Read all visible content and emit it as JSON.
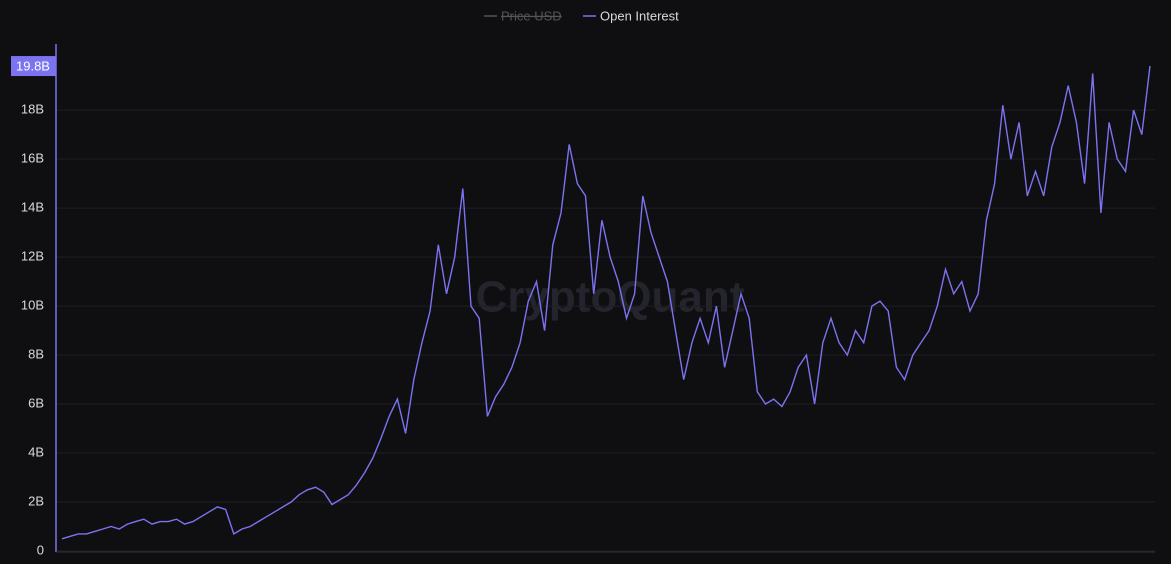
{
  "chart_data": {
    "type": "line",
    "watermark": "CryptoQuant",
    "hidden_series": [
      {
        "name": "Price USD",
        "color": "#555555"
      }
    ],
    "series": [
      {
        "name": "Open Interest",
        "color": "#7b73f0",
        "values": [
          0.5,
          0.6,
          0.7,
          0.7,
          0.8,
          0.9,
          1.0,
          0.9,
          1.1,
          1.2,
          1.3,
          1.1,
          1.2,
          1.2,
          1.3,
          1.1,
          1.2,
          1.4,
          1.6,
          1.8,
          1.7,
          0.7,
          0.9,
          1.0,
          1.2,
          1.4,
          1.6,
          1.8,
          2.0,
          2.3,
          2.5,
          2.6,
          2.4,
          1.9,
          2.1,
          2.3,
          2.7,
          3.2,
          3.8,
          4.6,
          5.5,
          6.2,
          4.8,
          7.0,
          8.5,
          9.8,
          12.5,
          10.5,
          12.0,
          14.8,
          10.0,
          9.5,
          5.5,
          6.3,
          6.8,
          7.5,
          8.5,
          10.2,
          11.0,
          9.0,
          12.5,
          13.8,
          16.6,
          15.0,
          14.5,
          10.5,
          13.5,
          12.0,
          11.0,
          9.5,
          10.5,
          14.5,
          13.0,
          12.0,
          11.0,
          9.0,
          7.0,
          8.5,
          9.5,
          8.5,
          10.0,
          7.5,
          9.0,
          10.5,
          9.5,
          6.5,
          6.0,
          6.2,
          5.9,
          6.5,
          7.5,
          8.0,
          6.0,
          8.5,
          9.5,
          8.5,
          8.0,
          9.0,
          8.5,
          10.0,
          10.2,
          9.8,
          7.5,
          7.0,
          8.0,
          8.5,
          9.0,
          10.0,
          11.5,
          10.5,
          11.0,
          9.8,
          10.5,
          13.5,
          15.0,
          18.2,
          16.0,
          17.5,
          14.5,
          15.5,
          14.5,
          16.5,
          17.5,
          19.0,
          17.5,
          15.0,
          19.5,
          13.8,
          17.5,
          16.0,
          15.5,
          18.0,
          17.0,
          19.8
        ]
      }
    ],
    "ylim": [
      0,
      20.7
    ],
    "yticks": [
      0,
      {
        "value": 2,
        "label": "2B"
      },
      {
        "value": 4,
        "label": "4B"
      },
      {
        "value": 6,
        "label": "6B"
      },
      {
        "value": 8,
        "label": "8B"
      },
      {
        "value": 10,
        "label": "10B"
      },
      {
        "value": 12,
        "label": "12B"
      },
      {
        "value": 14,
        "label": "14B"
      },
      {
        "value": 16,
        "label": "16B"
      },
      {
        "value": 18,
        "label": "18B"
      }
    ],
    "last_value_label": {
      "value": 19.8,
      "label": "19.8B"
    },
    "grid": true
  }
}
